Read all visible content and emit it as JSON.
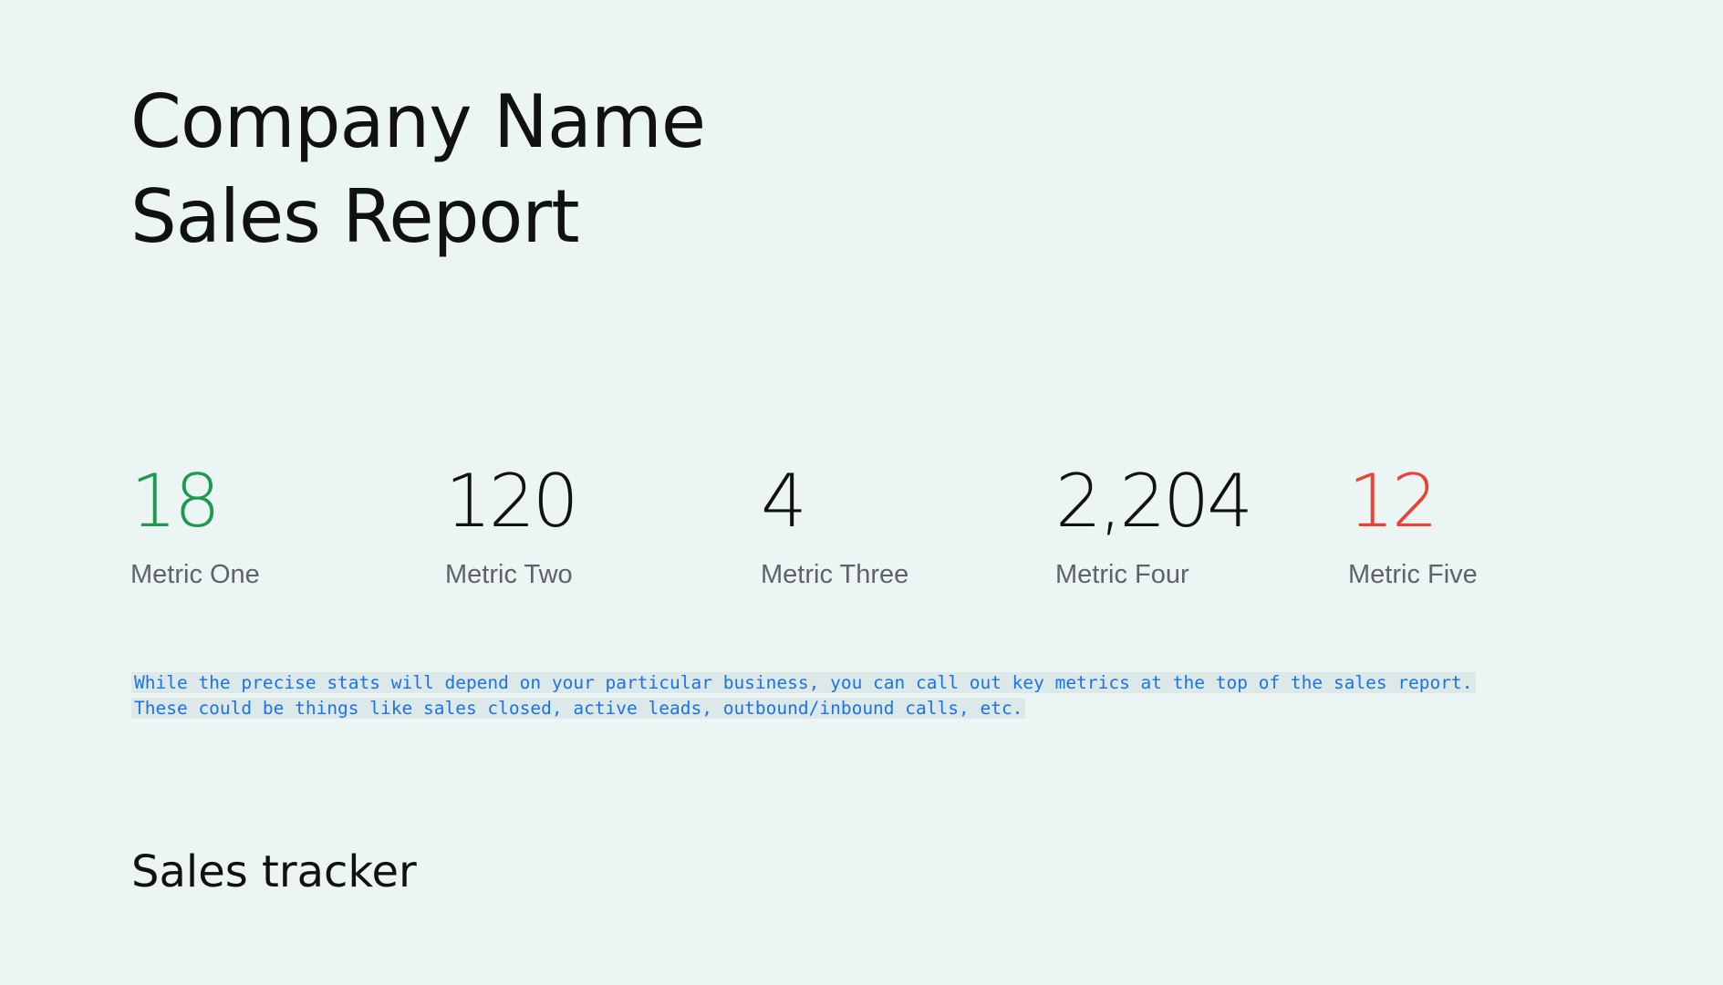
{
  "title": {
    "line1": "Company Name",
    "line2": "Sales Report"
  },
  "metrics": [
    {
      "value": "18",
      "label": "Metric One",
      "color": "#1e9952"
    },
    {
      "value": "120",
      "label": "Metric Two",
      "color": "#111111"
    },
    {
      "value": "4",
      "label": "Metric Three",
      "color": "#111111"
    },
    {
      "value": "2,204",
      "label": "Metric Four",
      "color": "#111111"
    },
    {
      "value": "12",
      "label": "Metric Five",
      "color": "#ea4335"
    }
  ],
  "note": {
    "line1": "While the precise stats will depend on your particular business, you can call out key metrics at the top of the sales report.",
    "line2": "These could be things like sales closed, active leads, outbound/inbound calls, etc."
  },
  "section": {
    "heading": "Sales tracker"
  }
}
